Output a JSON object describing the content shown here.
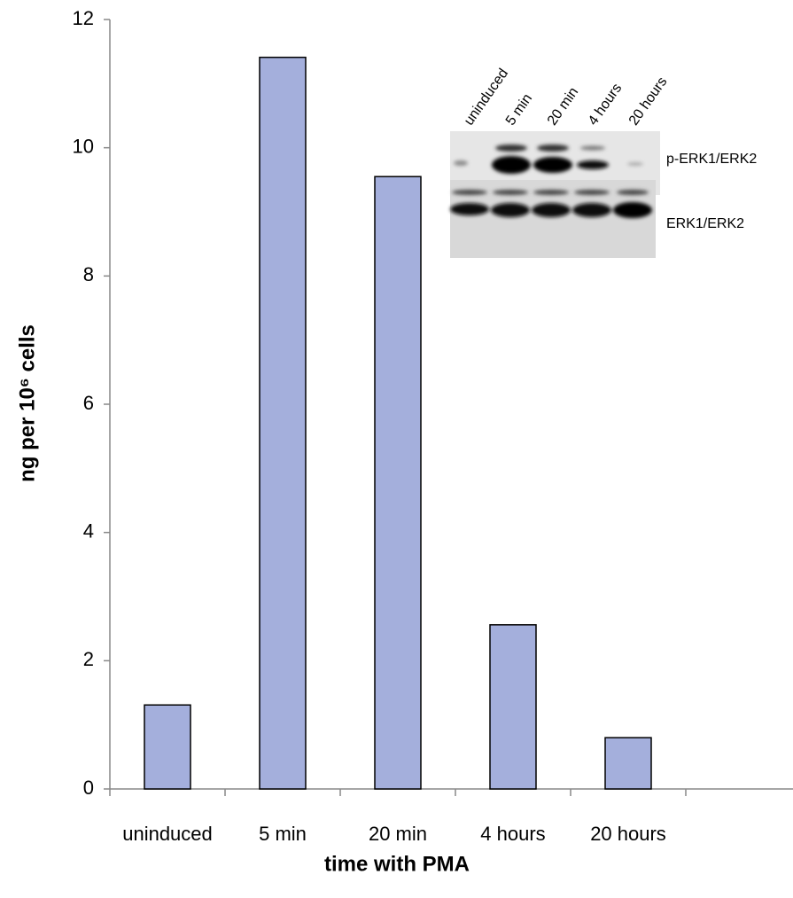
{
  "chart_data": {
    "type": "bar",
    "ylabel": "ng per 10⁶ cells",
    "xlabel": "time with PMA",
    "categories": [
      "uninduced",
      "5 min",
      "20 min",
      "4 hours",
      "20 hours",
      null
    ],
    "values": [
      1.31,
      11.41,
      9.55,
      2.56,
      0.8,
      null
    ],
    "color": "#a4afdc",
    "ylim": [
      0,
      12
    ],
    "yticks": [
      0,
      2,
      4,
      6,
      8,
      10,
      12
    ],
    "inset": {
      "lanes": [
        "uninduced",
        "5 min",
        "20 min",
        "4 hours",
        "20 hours"
      ],
      "blots": [
        "p-ERK1/ERK2",
        "ERK1/ERK2"
      ]
    }
  }
}
